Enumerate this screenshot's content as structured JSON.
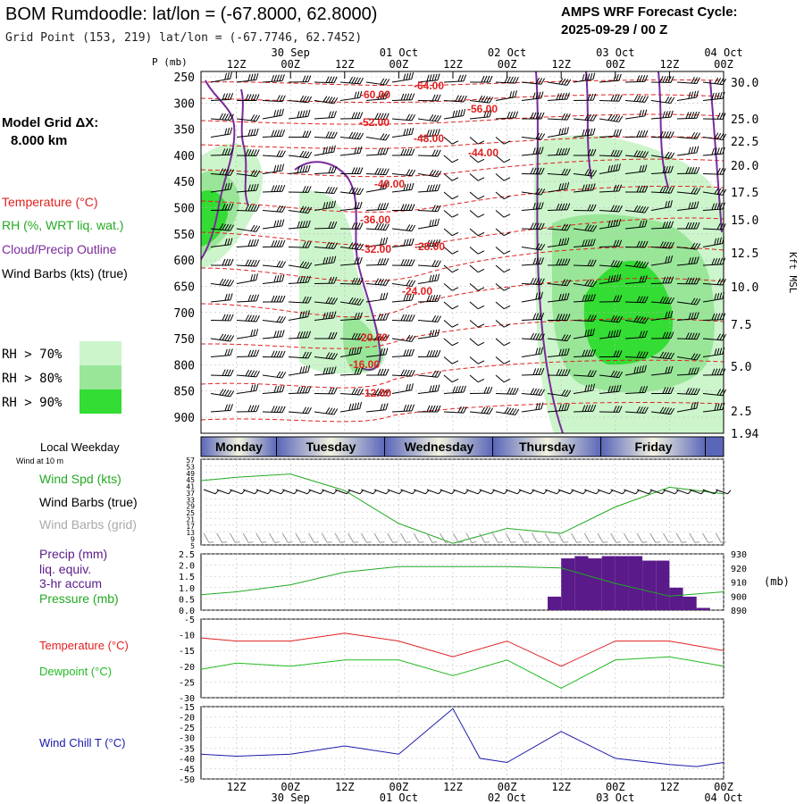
{
  "header": {
    "title": "BOM Rumdoodle:  lat/lon = (-67.8000, 62.8000)",
    "grid_point": "Grid Point (153, 219) lat/lon = (-67.7746, 62.7452)",
    "forecast_label": "AMPS WRF Forecast Cycle:",
    "forecast_cycle": "2025-09-29 / 00  Z"
  },
  "sidebar": {
    "model_grid_label": "Model Grid ΔX:",
    "model_grid_value": "8.000 km",
    "legend_items": [
      {
        "label": "Temperature (°C)",
        "color": "#e02020"
      },
      {
        "label": "RH (%, WRT liq. wat.)",
        "color": "#22aa22"
      },
      {
        "label": "Cloud/Precip Outline",
        "color": "#7a2a9a"
      },
      {
        "label": "Wind Barbs (kts) (true)",
        "color": "#000000"
      }
    ],
    "rh_thresholds": [
      {
        "label": "RH > 70%",
        "color": "#ccf5cc"
      },
      {
        "label": "RH > 80%",
        "color": "#99e699"
      },
      {
        "label": "RH > 90%",
        "color": "#33dd33"
      }
    ]
  },
  "time_axis": {
    "hour_labels": [
      "12Z",
      "00Z",
      "12Z",
      "00Z",
      "12Z",
      "00Z",
      "12Z",
      "00Z",
      "12Z",
      "00Z"
    ],
    "date_labels": [
      "30 Sep",
      "01 Oct",
      "02 Oct",
      "03 Oct",
      "04 Oct"
    ]
  },
  "weekday_strip": {
    "label": "Local Weekday",
    "sublabel": "Wind at 10 m",
    "days": [
      "Monday",
      "Tuesday",
      "Wednesday",
      "Thursday",
      "Friday"
    ]
  },
  "colors": {
    "temperature": "#e02020",
    "rh_fill": "#33dd33",
    "cloud_outline": "#7a2a9a",
    "wind": "#22aa22",
    "precip": "#5a1a8a",
    "dewpoint": "#22bb22",
    "windchill": "#1a1aaa",
    "day_band": "#5a66b8"
  },
  "chart_data": [
    {
      "type": "line",
      "panel": "upper-air cross-section",
      "title": "Temperature contours, RH shading, cloud outline and wind barbs vs pressure",
      "ylabel_left": "P (mb)",
      "ylabel_right": "Kft MSL",
      "x": [
        "Mon 12Z",
        "Tue 00Z",
        "Tue 12Z",
        "Wed 00Z",
        "Wed 12Z",
        "Thu 00Z",
        "Thu 12Z",
        "Fri 00Z",
        "Fri 12Z",
        "Sat 00Z"
      ],
      "y_ticks": [
        250,
        300,
        350,
        400,
        450,
        500,
        550,
        600,
        650,
        700,
        750,
        800,
        850,
        900
      ],
      "ylim": [
        245,
        925
      ],
      "right_ticks": [
        "30.0",
        "25.0",
        "22.5",
        "20.0",
        "17.5",
        "15.0",
        "12.5",
        "10.0",
        "7.5",
        "5.0",
        "2.5",
        "1.94"
      ],
      "temperature_labels": [
        "-64.00",
        "-60.00",
        "-56.00",
        "-52.00",
        "-48.00",
        "-44.00",
        "-40.00",
        "-36.00",
        "-32.00",
        "-28.00",
        "-24.00",
        "-20.00",
        "-16.00",
        "-12.00"
      ]
    },
    {
      "type": "line",
      "panel": "surface wind",
      "series_labels": [
        "Wind Spd (kts)",
        "Wind Barbs (true)",
        "Wind Barbs (grid)"
      ],
      "y_ticks": [
        "57",
        "53",
        "49",
        "45",
        "41",
        "37",
        "33",
        "29",
        "25",
        "21",
        "17",
        "13",
        "9",
        "5"
      ],
      "ylim": [
        5,
        57
      ],
      "x": [
        "Mon 00Z",
        "Mon 12Z",
        "Tue 00Z",
        "Tue 12Z",
        "Wed 00Z",
        "Wed 12Z",
        "Thu 00Z",
        "Thu 12Z",
        "Fri 00Z",
        "Fri 12Z",
        "Sat 00Z"
      ],
      "values": [
        44,
        46,
        48,
        38,
        18,
        6,
        15,
        12,
        28,
        40,
        36
      ]
    },
    {
      "type": "bar",
      "panel": "precipitation and pressure",
      "series_labels": [
        "Precip (mm)",
        "liq. equiv.",
        "3-hr accum",
        "Pressure (mb)"
      ],
      "right_unit": "(mb)",
      "y_ticks_left": [
        "2.5",
        "2.0",
        "1.5",
        "1.0",
        "0.5",
        "0.0"
      ],
      "y_ticks_right": [
        "930",
        "920",
        "910",
        "900",
        "890"
      ],
      "ylim_left": [
        0,
        2.5
      ],
      "ylim_right": [
        890,
        930
      ],
      "precip_3hr": [
        0.6,
        2.3,
        2.4,
        2.3,
        2.4,
        2.4,
        2.4,
        2.2,
        2.2,
        1.0,
        0.6,
        0.1
      ],
      "pressure_x": [
        "Mon 00Z",
        "Mon 12Z",
        "Tue 00Z",
        "Tue 12Z",
        "Wed 00Z",
        "Wed 12Z",
        "Thu 00Z",
        "Thu 12Z",
        "Fri 00Z",
        "Fri 12Z",
        "Sat 00Z"
      ],
      "pressure_mb": [
        901,
        903,
        908,
        917,
        921,
        921,
        921,
        920,
        909,
        900,
        903
      ]
    },
    {
      "type": "line",
      "panel": "temperature and dewpoint",
      "series": [
        {
          "name": "Temperature (°C)",
          "values": [
            -11,
            -12,
            -12,
            -9.5,
            -12,
            -17,
            -12,
            -20,
            -12,
            -12,
            -15
          ]
        },
        {
          "name": "Dewpoint (°C)",
          "values": [
            -21,
            -19,
            -20,
            -18,
            -18,
            -23,
            -18,
            -27,
            -18,
            -17,
            -20
          ]
        }
      ],
      "x": [
        "Mon 00Z",
        "Mon 12Z",
        "Tue 00Z",
        "Tue 12Z",
        "Wed 00Z",
        "Wed 12Z",
        "Thu 00Z",
        "Thu 12Z",
        "Fri 00Z",
        "Fri 12Z",
        "Sat 00Z"
      ],
      "y_ticks": [
        "-5",
        "-10",
        "-15",
        "-20",
        "-25",
        "-30"
      ],
      "ylim": [
        -30,
        -5
      ]
    },
    {
      "type": "line",
      "panel": "wind chill",
      "series": [
        {
          "name": "Wind Chill T (°C)",
          "values": [
            -38,
            -39,
            -38,
            -34,
            -38,
            -16,
            -40,
            -42,
            -27,
            -40,
            -43,
            -44,
            -42
          ]
        }
      ],
      "x": [
        "Mon 00Z",
        "Mon 12Z",
        "Tue 00Z",
        "Tue 12Z",
        "Wed 00Z",
        "Wed 12Z",
        "Wed 18Z",
        "Thu 00Z",
        "Thu 12Z",
        "Fri 00Z",
        "Fri 12Z",
        "Fri 18Z",
        "Sat 00Z"
      ],
      "y_ticks": [
        "-15",
        "-20",
        "-25",
        "-30",
        "-35",
        "-40",
        "-45",
        "-50"
      ],
      "ylim": [
        -50,
        -15
      ]
    }
  ]
}
